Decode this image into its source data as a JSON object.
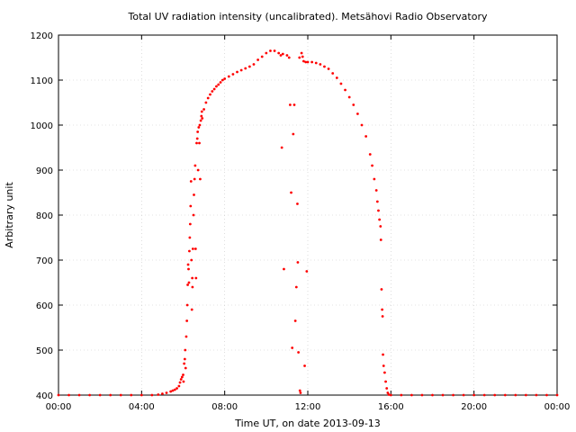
{
  "chart_data": {
    "type": "scatter",
    "title": "Total UV radiation intensity (uncalibrated). Metsähovi Radio Observatory",
    "xlabel": "Time UT, on date 2013-09-13",
    "ylabel": "Arbitrary unit",
    "xlim": [
      0,
      24
    ],
    "ylim": [
      400,
      1200
    ],
    "x_ticks": [
      {
        "value": 0,
        "label": "00:00"
      },
      {
        "value": 4,
        "label": "04:00"
      },
      {
        "value": 8,
        "label": "08:00"
      },
      {
        "value": 12,
        "label": "12:00"
      },
      {
        "value": 16,
        "label": "16:00"
      },
      {
        "value": 20,
        "label": "20:00"
      },
      {
        "value": 24,
        "label": "00:00"
      }
    ],
    "y_ticks": [
      400,
      500,
      600,
      700,
      800,
      900,
      1000,
      1100,
      1200
    ],
    "grid": true,
    "marker_color": "#ff0000",
    "series": [
      {
        "points": [
          [
            0.0,
            400
          ],
          [
            0.5,
            400
          ],
          [
            1.0,
            400
          ],
          [
            1.5,
            400
          ],
          [
            2.0,
            400
          ],
          [
            2.5,
            400
          ],
          [
            3.0,
            400
          ],
          [
            3.5,
            400
          ],
          [
            4.0,
            400
          ],
          [
            4.5,
            400
          ],
          [
            4.8,
            401
          ],
          [
            5.0,
            403
          ],
          [
            5.2,
            405
          ],
          [
            5.4,
            408
          ],
          [
            5.5,
            410
          ],
          [
            5.6,
            412
          ],
          [
            5.7,
            415
          ],
          [
            5.8,
            420
          ],
          [
            5.85,
            428
          ],
          [
            5.9,
            435
          ],
          [
            5.95,
            440
          ],
          [
            6.0,
            445
          ],
          [
            6.02,
            430
          ],
          [
            6.05,
            470
          ],
          [
            6.08,
            480
          ],
          [
            6.1,
            500
          ],
          [
            6.12,
            460
          ],
          [
            6.15,
            530
          ],
          [
            6.18,
            565
          ],
          [
            6.2,
            600
          ],
          [
            6.22,
            645
          ],
          [
            6.24,
            690
          ],
          [
            6.26,
            680
          ],
          [
            6.28,
            650
          ],
          [
            6.3,
            720
          ],
          [
            6.32,
            750
          ],
          [
            6.34,
            780
          ],
          [
            6.36,
            820
          ],
          [
            6.38,
            875
          ],
          [
            6.4,
            700
          ],
          [
            6.42,
            590
          ],
          [
            6.44,
            660
          ],
          [
            6.45,
            640
          ],
          [
            6.47,
            725
          ],
          [
            6.5,
            800
          ],
          [
            6.52,
            845
          ],
          [
            6.55,
            880
          ],
          [
            6.58,
            910
          ],
          [
            6.6,
            725
          ],
          [
            6.62,
            660
          ],
          [
            6.65,
            960
          ],
          [
            6.68,
            970
          ],
          [
            6.7,
            985
          ],
          [
            6.72,
            900
          ],
          [
            6.75,
            995
          ],
          [
            6.78,
            960
          ],
          [
            6.8,
            1000
          ],
          [
            6.82,
            880
          ],
          [
            6.85,
            1010
          ],
          [
            6.88,
            1020
          ],
          [
            6.9,
            1030
          ],
          [
            6.92,
            1015
          ],
          [
            7.0,
            1035
          ],
          [
            7.1,
            1050
          ],
          [
            7.2,
            1060
          ],
          [
            7.3,
            1068
          ],
          [
            7.4,
            1075
          ],
          [
            7.5,
            1080
          ],
          [
            7.6,
            1086
          ],
          [
            7.7,
            1090
          ],
          [
            7.8,
            1095
          ],
          [
            7.9,
            1100
          ],
          [
            8.0,
            1103
          ],
          [
            8.2,
            1108
          ],
          [
            8.4,
            1113
          ],
          [
            8.6,
            1118
          ],
          [
            8.8,
            1122
          ],
          [
            9.0,
            1126
          ],
          [
            9.2,
            1130
          ],
          [
            9.4,
            1135
          ],
          [
            9.6,
            1145
          ],
          [
            9.8,
            1152
          ],
          [
            10.0,
            1160
          ],
          [
            10.2,
            1165
          ],
          [
            10.4,
            1165
          ],
          [
            10.6,
            1160
          ],
          [
            10.7,
            1155
          ],
          [
            10.75,
            950
          ],
          [
            10.8,
            1158
          ],
          [
            10.85,
            680
          ],
          [
            11.0,
            1155
          ],
          [
            11.1,
            1150
          ],
          [
            11.15,
            1045
          ],
          [
            11.2,
            850
          ],
          [
            11.25,
            505
          ],
          [
            11.3,
            980
          ],
          [
            11.35,
            1045
          ],
          [
            11.4,
            565
          ],
          [
            11.45,
            640
          ],
          [
            11.5,
            825
          ],
          [
            11.52,
            695
          ],
          [
            11.55,
            495
          ],
          [
            11.6,
            1150
          ],
          [
            11.62,
            410
          ],
          [
            11.65,
            405
          ],
          [
            11.7,
            1160
          ],
          [
            11.75,
            1152
          ],
          [
            11.8,
            1142
          ],
          [
            11.85,
            465
          ],
          [
            11.9,
            1140
          ],
          [
            11.95,
            675
          ],
          [
            12.0,
            1140
          ],
          [
            12.2,
            1140
          ],
          [
            12.4,
            1138
          ],
          [
            12.6,
            1135
          ],
          [
            12.8,
            1130
          ],
          [
            13.0,
            1125
          ],
          [
            13.2,
            1115
          ],
          [
            13.4,
            1105
          ],
          [
            13.6,
            1092
          ],
          [
            13.8,
            1078
          ],
          [
            14.0,
            1062
          ],
          [
            14.2,
            1045
          ],
          [
            14.4,
            1025
          ],
          [
            14.6,
            1000
          ],
          [
            14.8,
            975
          ],
          [
            15.0,
            935
          ],
          [
            15.1,
            910
          ],
          [
            15.2,
            880
          ],
          [
            15.3,
            855
          ],
          [
            15.35,
            830
          ],
          [
            15.4,
            810
          ],
          [
            15.45,
            790
          ],
          [
            15.5,
            775
          ],
          [
            15.52,
            745
          ],
          [
            15.55,
            635
          ],
          [
            15.58,
            590
          ],
          [
            15.6,
            575
          ],
          [
            15.62,
            490
          ],
          [
            15.65,
            465
          ],
          [
            15.7,
            450
          ],
          [
            15.75,
            430
          ],
          [
            15.8,
            415
          ],
          [
            15.85,
            405
          ],
          [
            15.9,
            401
          ],
          [
            16.0,
            400
          ],
          [
            16.5,
            400
          ],
          [
            17.0,
            400
          ],
          [
            17.5,
            400
          ],
          [
            18.0,
            400
          ],
          [
            18.5,
            400
          ],
          [
            19.0,
            400
          ],
          [
            19.5,
            400
          ],
          [
            20.0,
            400
          ],
          [
            20.5,
            400
          ],
          [
            21.0,
            400
          ],
          [
            21.5,
            400
          ],
          [
            22.0,
            400
          ],
          [
            22.5,
            400
          ],
          [
            23.0,
            400
          ],
          [
            23.5,
            400
          ],
          [
            24.0,
            400
          ]
        ]
      }
    ]
  }
}
